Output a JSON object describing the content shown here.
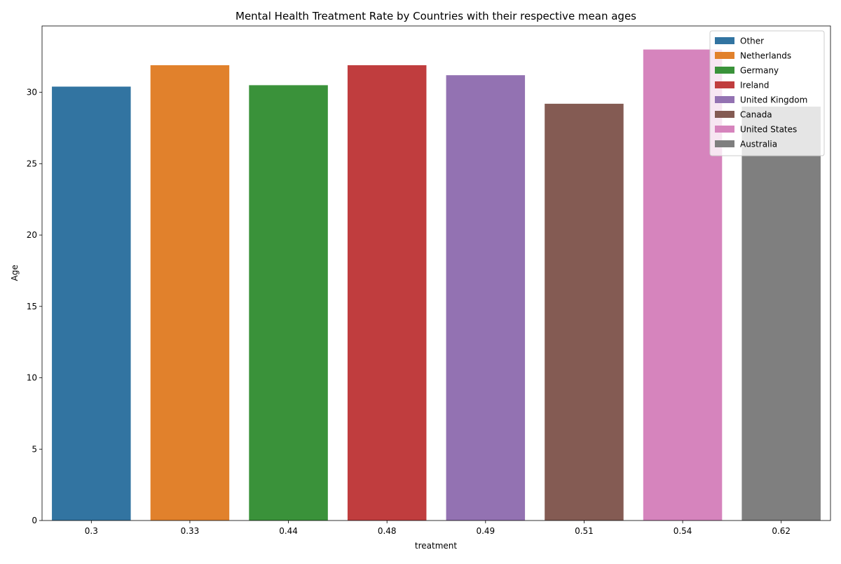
{
  "chart_data": {
    "type": "bar",
    "title": "Mental Health Treatment Rate by Countries with their respective mean ages",
    "xlabel": "treatment",
    "ylabel": "Age",
    "categories": [
      "0.3",
      "0.33",
      "0.44",
      "0.48",
      "0.49",
      "0.51",
      "0.54",
      "0.62"
    ],
    "series": [
      {
        "name": "Other",
        "color": "#3274a1",
        "value": 30.4
      },
      {
        "name": "Netherlands",
        "color": "#e1812c",
        "value": 31.9
      },
      {
        "name": "Germany",
        "color": "#3a923a",
        "value": 30.5
      },
      {
        "name": "Ireland",
        "color": "#c03d3e",
        "value": 31.9
      },
      {
        "name": "United Kingdom",
        "color": "#9372b2",
        "value": 31.2
      },
      {
        "name": "Canada",
        "color": "#845b53",
        "value": 29.2
      },
      {
        "name": "United States",
        "color": "#d684bd",
        "value": 33.0
      },
      {
        "name": "Australia",
        "color": "#7f7f7f",
        "value": 29.0
      }
    ],
    "ylim": [
      0,
      34.65
    ],
    "yticks": [
      0,
      5,
      10,
      15,
      20,
      25,
      30
    ],
    "grid": false,
    "legend_position": "top-right"
  }
}
